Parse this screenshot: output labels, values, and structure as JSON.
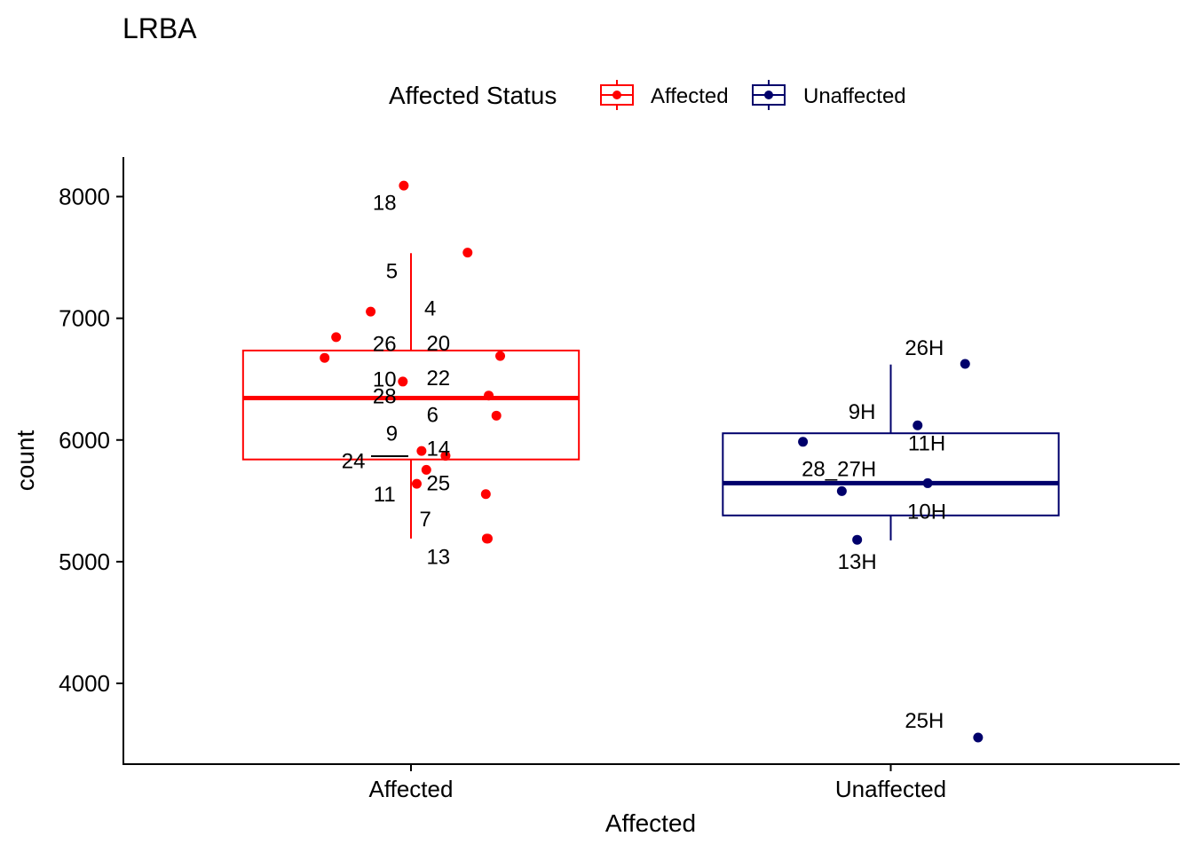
{
  "chart_data": {
    "type": "box",
    "title": "LRBA",
    "xlabel": "Affected",
    "ylabel": "count",
    "ylim": [
      3400,
      8320
    ],
    "yticks": [
      4000,
      5000,
      6000,
      7000,
      8000
    ],
    "categories": [
      "Affected",
      "Unaffected"
    ],
    "legend": {
      "title": "Affected Status",
      "position": "top",
      "entries": [
        "Affected",
        "Unaffected"
      ]
    },
    "colors": {
      "Affected": "#ff0000",
      "Unaffected": "#00006b"
    },
    "grid": false,
    "series": [
      {
        "name": "Affected",
        "category": "Affected",
        "box": {
          "min": 5190,
          "q1": 5840,
          "median": 6345,
          "q3": 6735,
          "max": 7535
        },
        "points": [
          {
            "label": "18",
            "x": -0.015,
            "y": 8090
          },
          {
            "label": "5",
            "x": 0.118,
            "y": 7540
          },
          {
            "label": "4",
            "x": -0.084,
            "y": 7055
          },
          {
            "label": "26",
            "x": -0.156,
            "y": 6845
          },
          {
            "label": "20",
            "x": 0.186,
            "y": 6690
          },
          {
            "label": "10",
            "x": -0.18,
            "y": 6675
          },
          {
            "label": "22",
            "x": -0.017,
            "y": 6480
          },
          {
            "label": "28",
            "x": 0.162,
            "y": 6365
          },
          {
            "label": "6",
            "x": 0.178,
            "y": 6200
          },
          {
            "label": "9",
            "x": 0.022,
            "y": 5910
          },
          {
            "label": "14",
            "x": 0.072,
            "y": 5870
          },
          {
            "label": "24",
            "x": 0.032,
            "y": 5755
          },
          {
            "label": "25",
            "x": 0.012,
            "y": 5640
          },
          {
            "label": "11",
            "x": 0.156,
            "y": 5555
          },
          {
            "label": "7",
            "x": 0.16,
            "y": 5190
          },
          {
            "label": "13",
            "x": 0.158,
            "y": 5190
          }
        ]
      },
      {
        "name": "Unaffected",
        "category": "Unaffected",
        "box": {
          "min": 5175,
          "q1": 5380,
          "median": 5645,
          "q3": 6055,
          "max": 6620
        },
        "points": [
          {
            "label": "26H",
            "x": 0.155,
            "y": 6625
          },
          {
            "label": "9H",
            "x": 0.056,
            "y": 6120
          },
          {
            "label": "11H",
            "x": -0.183,
            "y": 5985
          },
          {
            "label": "28_27H",
            "x": -0.102,
            "y": 5580
          },
          {
            "label": "10H",
            "x": 0.077,
            "y": 5645
          },
          {
            "label": "13H",
            "x": -0.07,
            "y": 5180
          },
          {
            "label": "25H",
            "x": 0.182,
            "y": 3555
          }
        ]
      }
    ],
    "point_labels": [
      {
        "text": "18",
        "category": "Affected",
        "x": -0.055,
        "y": 7955
      },
      {
        "text": "5",
        "category": "Affected",
        "x": -0.04,
        "y": 7395
      },
      {
        "text": "4",
        "category": "Affected",
        "x": 0.04,
        "y": 7090
      },
      {
        "text": "26",
        "category": "Affected",
        "x": -0.055,
        "y": 6795
      },
      {
        "text": "20",
        "category": "Affected",
        "x": 0.057,
        "y": 6800
      },
      {
        "text": "10",
        "category": "Affected",
        "x": -0.055,
        "y": 6505
      },
      {
        "text": "22",
        "category": "Affected",
        "x": 0.057,
        "y": 6515
      },
      {
        "text": "28",
        "category": "Affected",
        "x": -0.055,
        "y": 6365
      },
      {
        "text": "6",
        "category": "Affected",
        "x": 0.045,
        "y": 6215
      },
      {
        "text": "9",
        "category": "Affected",
        "x": -0.04,
        "y": 6060
      },
      {
        "text": "24",
        "category": "Affected",
        "x": -0.12,
        "y": 5835
      },
      {
        "text": "14",
        "category": "Affected",
        "x": 0.057,
        "y": 5935
      },
      {
        "text": "25",
        "category": "Affected",
        "x": 0.057,
        "y": 5650
      },
      {
        "text": "11",
        "category": "Affected",
        "x": -0.055,
        "y": 5560
      },
      {
        "text": "7",
        "category": "Affected",
        "x": 0.03,
        "y": 5355
      },
      {
        "text": "13",
        "category": "Affected",
        "x": 0.057,
        "y": 5045
      },
      {
        "text": "26H",
        "category": "Unaffected",
        "x": 0.07,
        "y": 6765
      },
      {
        "text": "9H",
        "category": "Unaffected",
        "x": -0.06,
        "y": 6240
      },
      {
        "text": "11H",
        "category": "Unaffected",
        "x": 0.075,
        "y": 5980
      },
      {
        "text": "28_27H",
        "category": "Unaffected",
        "x": -0.108,
        "y": 5770
      },
      {
        "text": "10H",
        "category": "Unaffected",
        "x": 0.075,
        "y": 5420
      },
      {
        "text": "13H",
        "category": "Unaffected",
        "x": -0.07,
        "y": 5005
      },
      {
        "text": "25H",
        "category": "Unaffected",
        "x": 0.07,
        "y": 3700
      }
    ]
  }
}
